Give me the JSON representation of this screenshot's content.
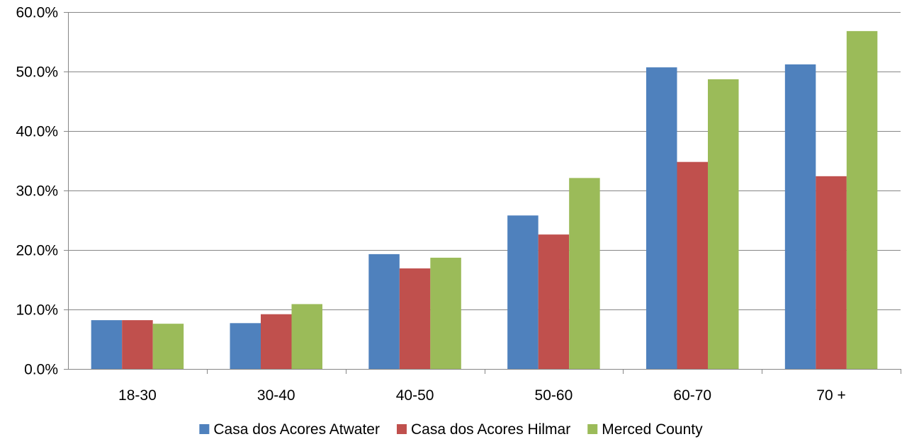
{
  "chart_data": {
    "type": "bar",
    "title": "",
    "xlabel": "",
    "ylabel": "",
    "categories": [
      "18-30",
      "30-40",
      "40-50",
      "50-60",
      "60-70",
      "70 +"
    ],
    "series": [
      {
        "name": "Casa dos Acores Atwater",
        "color": "#4F81BD",
        "values": [
          8.2,
          7.7,
          19.3,
          25.8,
          50.7,
          51.2
        ]
      },
      {
        "name": "Casa dos Acores Hilmar",
        "color": "#C0504D",
        "values": [
          8.2,
          9.2,
          16.9,
          22.6,
          34.8,
          32.4
        ]
      },
      {
        "name": "Merced County",
        "color": "#9BBB59",
        "values": [
          7.6,
          10.9,
          18.7,
          32.1,
          48.7,
          56.8
        ]
      }
    ],
    "ylim": [
      0,
      60
    ],
    "yticks": [
      "0.0%",
      "10.0%",
      "20.0%",
      "30.0%",
      "40.0%",
      "50.0%",
      "60.0%"
    ],
    "ytick_values": [
      0,
      10,
      20,
      30,
      40,
      50,
      60
    ],
    "grid": true,
    "legend_position": "bottom"
  }
}
